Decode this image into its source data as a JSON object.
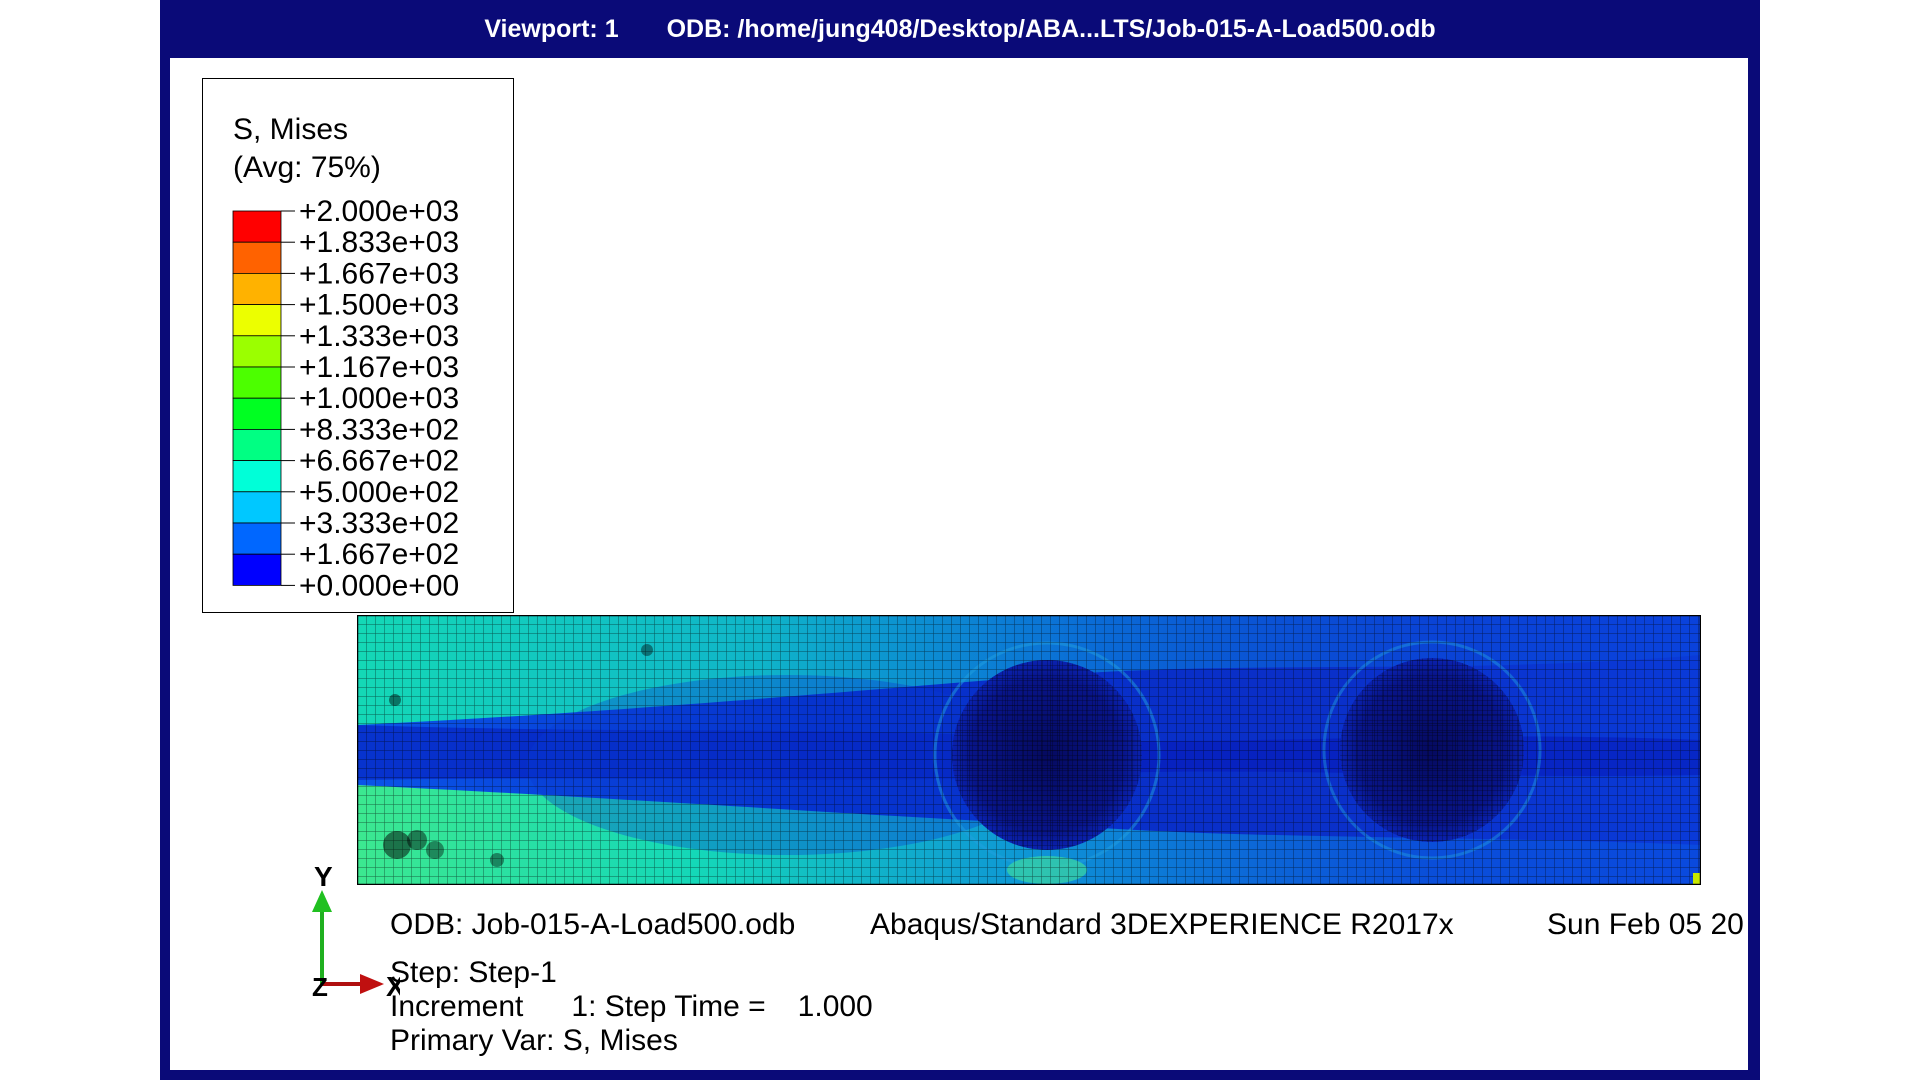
{
  "viewport": {
    "label": "Viewport: 1",
    "odb_path": "ODB: /home/jung408/Desktop/ABA...LTS/Job-015-A-Load500.odb"
  },
  "legend": {
    "title": "S, Mises",
    "subtitle": "(Avg: 75%)",
    "labels": [
      "+2.000e+03",
      "+1.833e+03",
      "+1.667e+03",
      "+1.500e+03",
      "+1.333e+03",
      "+1.167e+03",
      "+1.000e+03",
      "+8.333e+02",
      "+6.667e+02",
      "+5.000e+02",
      "+3.333e+02",
      "+1.667e+02",
      "+0.000e+00"
    ],
    "colors": [
      "#ff0000",
      "#ff6200",
      "#ffb200",
      "#ecff00",
      "#9bff00",
      "#4cff00",
      "#00ff22",
      "#00ff83",
      "#00ffd8",
      "#00c8ff",
      "#0067ff",
      "#0000ff"
    ]
  },
  "triad": {
    "y_label": "Y",
    "x_label": "X",
    "z_label": "Z"
  },
  "info": {
    "odb": "ODB: Job-015-A-Load500.odb",
    "solver": "Abaqus/Standard 3DEXPERIENCE R2017x",
    "date": "Sun Feb 05 20",
    "step": "Step: Step-1",
    "increment_label": "Increment",
    "increment_value": "1: Step Time =",
    "step_time": "1.000",
    "primary_var": "Primary Var: S, Mises"
  }
}
